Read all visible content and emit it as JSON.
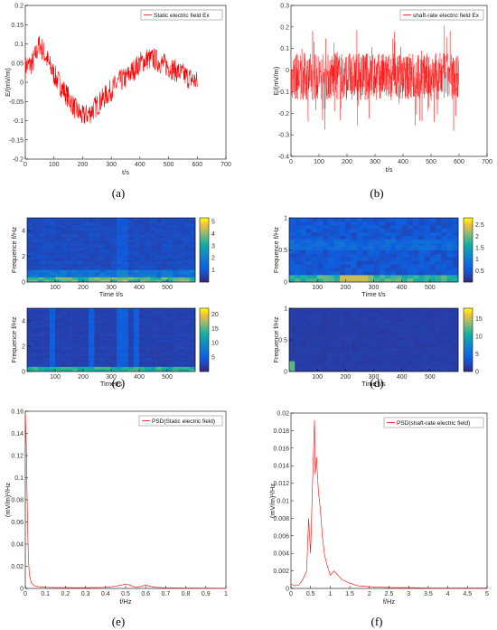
{
  "colors": {
    "signal": "#ff0000",
    "axis": "#000000",
    "grid_bg": "#ffffff"
  },
  "captions": {
    "a": "(a)",
    "b": "(b)",
    "c": "(c)",
    "d": "(d)",
    "e": "(e)",
    "f": "(f)"
  },
  "chart_data": [
    {
      "id": "a",
      "type": "line",
      "xlabel": "t/s",
      "ylabel": "E/(mV/m)",
      "xlim": [
        0,
        700
      ],
      "ylim": [
        -0.2,
        0.2
      ],
      "xticks": [
        "0",
        "100",
        "200",
        "300",
        "400",
        "500",
        "600",
        "700"
      ],
      "yticks": [
        "0.2",
        "0.15",
        "0.1",
        "0.05",
        "0",
        "-0.05",
        "-0.1",
        "-0.15",
        "-0.2"
      ],
      "legend": "Static electric field Ex",
      "legend_position": "top-right",
      "series": [
        {
          "name": "Static electric field Ex",
          "x": [
            0,
            25,
            50,
            75,
            100,
            125,
            150,
            175,
            200,
            225,
            250,
            275,
            300,
            325,
            350,
            375,
            400,
            425,
            450,
            475,
            500,
            525,
            550,
            575,
            600
          ],
          "y": [
            0.04,
            0.05,
            0.1,
            0.06,
            0.02,
            -0.01,
            -0.04,
            -0.07,
            -0.09,
            -0.08,
            -0.06,
            -0.04,
            -0.02,
            0.0,
            0.01,
            0.03,
            0.05,
            0.06,
            0.06,
            0.05,
            0.04,
            0.03,
            0.02,
            0.01,
            0.0
          ]
        }
      ]
    },
    {
      "id": "b",
      "type": "line",
      "xlabel": "t/s",
      "ylabel": "E/(mV/m)",
      "xlim": [
        0,
        700
      ],
      "ylim": [
        -0.4,
        0.3
      ],
      "xticks": [
        "0",
        "100",
        "200",
        "300",
        "400",
        "500",
        "600",
        "700"
      ],
      "yticks": [
        "0.3",
        "0.2",
        "0.1",
        "0",
        "-0.1",
        "-0.2",
        "-0.3",
        "-0.4"
      ],
      "legend": "shaft-rate electric field Ex",
      "legend_position": "top-right",
      "series": [
        {
          "name": "shaft-rate electric field Ex",
          "x": [
            0,
            600
          ],
          "y": [
            -0.03,
            -0.03
          ]
        }
      ]
    },
    {
      "id": "c1",
      "type": "heatmap",
      "xlabel": "Time t/s",
      "ylabel": "Frequence f/Hz",
      "xlim": [
        0,
        600
      ],
      "ylim": [
        0,
        5
      ],
      "xticks": [
        "100",
        "200",
        "300",
        "400",
        "500"
      ],
      "yticks": [
        "4",
        "2",
        "0"
      ],
      "colorbar": {
        "ticks": [
          "5",
          "4",
          "3",
          "2",
          "1"
        ],
        "max": 5.3
      }
    },
    {
      "id": "c2",
      "type": "heatmap",
      "xlabel": "Timet/s",
      "ylabel": "Frequence f/Hz",
      "xlim": [
        0,
        600
      ],
      "ylim": [
        0,
        5
      ],
      "xticks": [
        "100",
        "200",
        "300",
        "400",
        "500"
      ],
      "yticks": [
        "4",
        "2",
        "0"
      ],
      "colorbar": {
        "ticks": [
          "20",
          "15",
          "10",
          "5"
        ],
        "max": 22
      }
    },
    {
      "id": "d1",
      "type": "heatmap",
      "xlabel": "Time t/s",
      "ylabel": "Frequence f/Hz",
      "xlim": [
        0,
        600
      ],
      "ylim": [
        0,
        1
      ],
      "xticks": [
        "100",
        "200",
        "300",
        "400",
        "500"
      ],
      "yticks": [
        "1",
        "0.5",
        "0"
      ],
      "colorbar": {
        "ticks": [
          "2.5",
          "2",
          "1.5",
          "1",
          "0.5"
        ],
        "max": 2.8
      }
    },
    {
      "id": "d2",
      "type": "heatmap",
      "xlabel": "Time t/s",
      "ylabel": "Frequence f/Hz",
      "xlim": [
        0,
        600
      ],
      "ylim": [
        0,
        1
      ],
      "xticks": [
        "100",
        "200",
        "300",
        "400",
        "500"
      ],
      "yticks": [
        "1",
        "0.5",
        "0"
      ],
      "colorbar": {
        "ticks": [
          "15",
          "10",
          "5",
          "0"
        ],
        "max": 18
      }
    },
    {
      "id": "e",
      "type": "line",
      "xlabel": "f/Hz",
      "ylabel": "(mV/m)²/Hz",
      "xlim": [
        0,
        1
      ],
      "ylim": [
        0,
        0.16
      ],
      "xticks": [
        "0",
        "0.1",
        "0.2",
        "0.3",
        "0.4",
        "0.5",
        "0.6",
        "0.7",
        "0.8",
        "0.9",
        "1"
      ],
      "yticks": [
        "0.16",
        "0.14",
        "0.12",
        "0.1",
        "0.08",
        "0.06",
        "0.04",
        "0.02",
        "0"
      ],
      "legend": "PSD(Static electric field)",
      "legend_position": "top-right",
      "series": [
        {
          "name": "PSD(Static electric field)",
          "x": [
            0,
            0.005,
            0.01,
            0.015,
            0.02,
            0.03,
            0.04,
            0.05,
            0.07,
            0.1,
            0.15,
            0.2,
            0.25,
            0.3,
            0.35,
            0.4,
            0.45,
            0.48,
            0.5,
            0.52,
            0.55,
            0.58,
            0.6,
            0.62,
            0.65,
            0.7,
            0.75,
            0.8,
            0.85,
            0.9,
            0.95,
            1.0
          ],
          "y": [
            0.158,
            0.13,
            0.07,
            0.03,
            0.012,
            0.005,
            0.003,
            0.002,
            0.0015,
            0.001,
            0.0008,
            0.0008,
            0.0007,
            0.0007,
            0.0008,
            0.001,
            0.002,
            0.003,
            0.004,
            0.003,
            0.001,
            0.002,
            0.003,
            0.002,
            0.001,
            0.0006,
            0.0005,
            0.0004,
            0.0004,
            0.0003,
            0.0003,
            0.0002
          ]
        }
      ]
    },
    {
      "id": "f",
      "type": "line",
      "xlabel": "f/Hz",
      "ylabel": "(mV/m)²/Hz",
      "xlim": [
        0,
        5
      ],
      "ylim": [
        0,
        0.02
      ],
      "xticks": [
        "0",
        "0.5",
        "1",
        "1.5",
        "2",
        "2.5",
        "3",
        "3.5",
        "4",
        "4.5",
        "5"
      ],
      "yticks": [
        "0.02",
        "0.018",
        "0.016",
        "0.014",
        "0.012",
        "0.01",
        "0.008",
        "0.006",
        "0.004",
        "0.002",
        "0"
      ],
      "legend": "PSD(shaft-rate electric field)",
      "legend_position": "top-right",
      "series": [
        {
          "name": "PSD(shaft-rate electric field)",
          "x": [
            0,
            0.1,
            0.2,
            0.3,
            0.4,
            0.45,
            0.5,
            0.55,
            0.6,
            0.62,
            0.65,
            0.7,
            0.75,
            0.8,
            0.85,
            0.9,
            1.0,
            1.1,
            1.2,
            1.3,
            1.5,
            1.7,
            2.0,
            2.5,
            3.0,
            3.5,
            4.0,
            4.5,
            5.0
          ],
          "y": [
            0.0005,
            0.0003,
            0.0004,
            0.001,
            0.002,
            0.008,
            0.004,
            0.012,
            0.0192,
            0.013,
            0.015,
            0.011,
            0.009,
            0.006,
            0.004,
            0.003,
            0.0015,
            0.002,
            0.0015,
            0.001,
            0.0006,
            0.0003,
            0.0002,
            0.0001,
            0.0001,
            5e-05,
            5e-05,
            5e-05,
            5e-05
          ]
        }
      ]
    }
  ]
}
